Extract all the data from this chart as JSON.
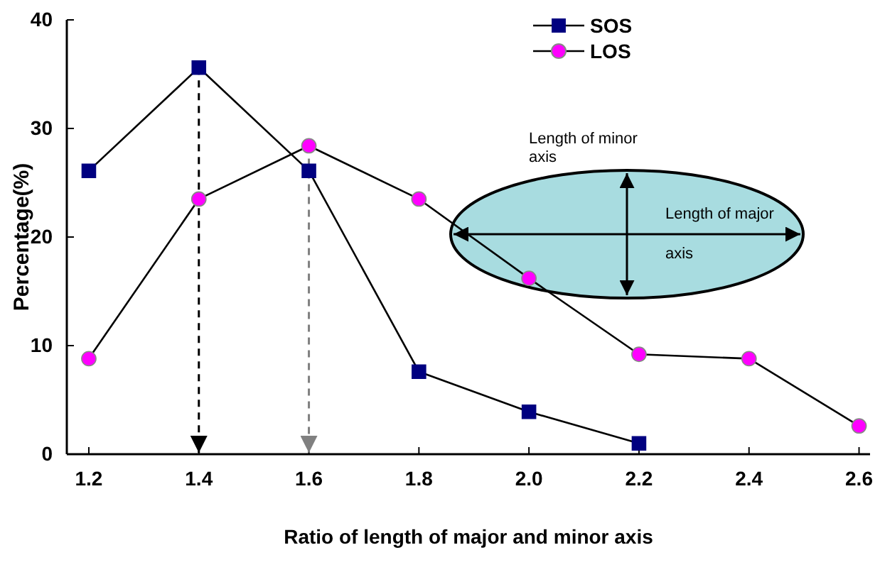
{
  "chart_data": {
    "type": "line",
    "xlabel": "Ratio of length of major and minor axis",
    "ylabel": "Percentage(%)",
    "x": [
      1.2,
      1.4,
      1.6,
      1.8,
      2.0,
      2.2,
      2.4,
      2.6
    ],
    "series": [
      {
        "name": "SOS",
        "color": "#000080",
        "marker": "square",
        "values": [
          26.1,
          35.6,
          26.1,
          7.6,
          3.9,
          1.0,
          null,
          null
        ]
      },
      {
        "name": "LOS",
        "color": "#ff00ff",
        "marker": "circle",
        "values": [
          8.8,
          23.5,
          28.4,
          23.5,
          16.2,
          9.2,
          8.8,
          2.6
        ]
      }
    ],
    "xlim": [
      1.16,
      2.62
    ],
    "xticks": [
      {
        "value": 1.2,
        "label": "1.2"
      },
      {
        "value": 1.4,
        "label": "1.4"
      },
      {
        "value": 1.6,
        "label": "1.6"
      },
      {
        "value": 1.8,
        "label": "1.8"
      },
      {
        "value": 2.0,
        "label": "2.0"
      },
      {
        "value": 2.2,
        "label": "2.2"
      },
      {
        "value": 2.4,
        "label": "2.4"
      },
      {
        "value": 2.6,
        "label": "2.6"
      }
    ],
    "ylim": [
      0,
      40
    ],
    "yticks": [
      0,
      10,
      20,
      30,
      40
    ],
    "ref_lines": [
      {
        "axis": "x",
        "value": 1.4,
        "color": "#000000",
        "line_style": "dashed"
      },
      {
        "axis": "x",
        "value": 1.6,
        "color": "#808080",
        "line_style": "dashed"
      }
    ],
    "annotations": [
      "Length of minor axis",
      "Length of major axis"
    ],
    "legend": "top right",
    "grid": false
  }
}
